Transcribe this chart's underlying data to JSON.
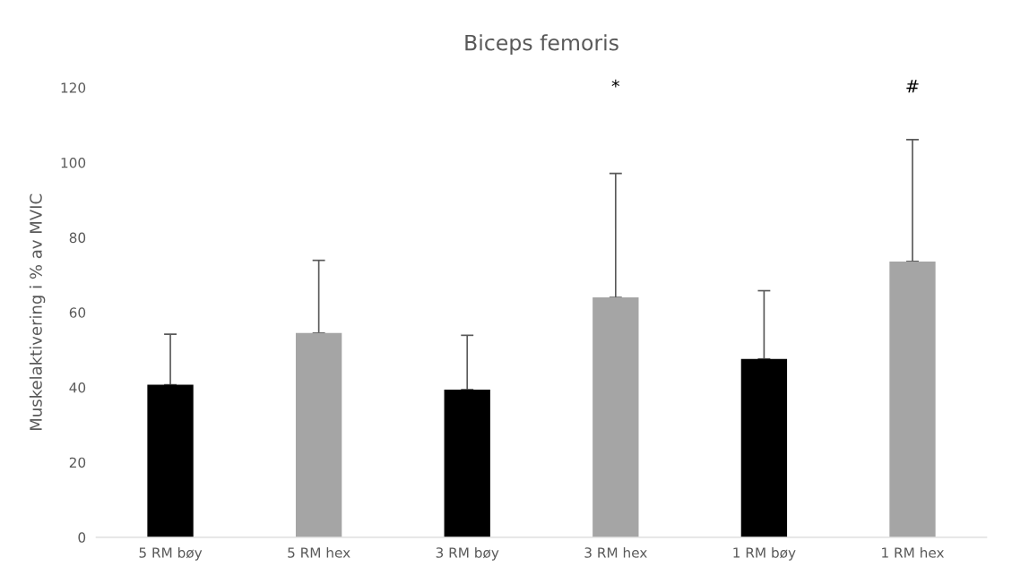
{
  "chart_data": {
    "type": "bar",
    "title": "Biceps femoris",
    "ylabel": "Muskelaktivering i % av MVIC",
    "categories": [
      "5 RM bøy",
      "5 RM hex",
      "3 RM bøy",
      "3 RM hex",
      "1 RM bøy",
      "1 RM hex"
    ],
    "values": [
      40.7,
      54.5,
      39.4,
      64.0,
      47.6,
      73.6
    ],
    "colors": [
      "#000000",
      "#a5a5a5",
      "#000000",
      "#a5a5a5",
      "#000000",
      "#a5a5a5"
    ],
    "errors": [
      [
        40.7,
        54.2
      ],
      [
        54.5,
        73.9
      ],
      [
        39.4,
        53.9
      ],
      [
        64.0,
        97.1
      ],
      [
        47.6,
        65.8
      ],
      [
        73.6,
        106.1
      ]
    ],
    "ylim": [
      0,
      120
    ],
    "yticks": [
      0,
      20,
      40,
      60,
      80,
      100,
      120
    ],
    "grid": false,
    "annotations": [
      "*",
      "#"
    ]
  }
}
